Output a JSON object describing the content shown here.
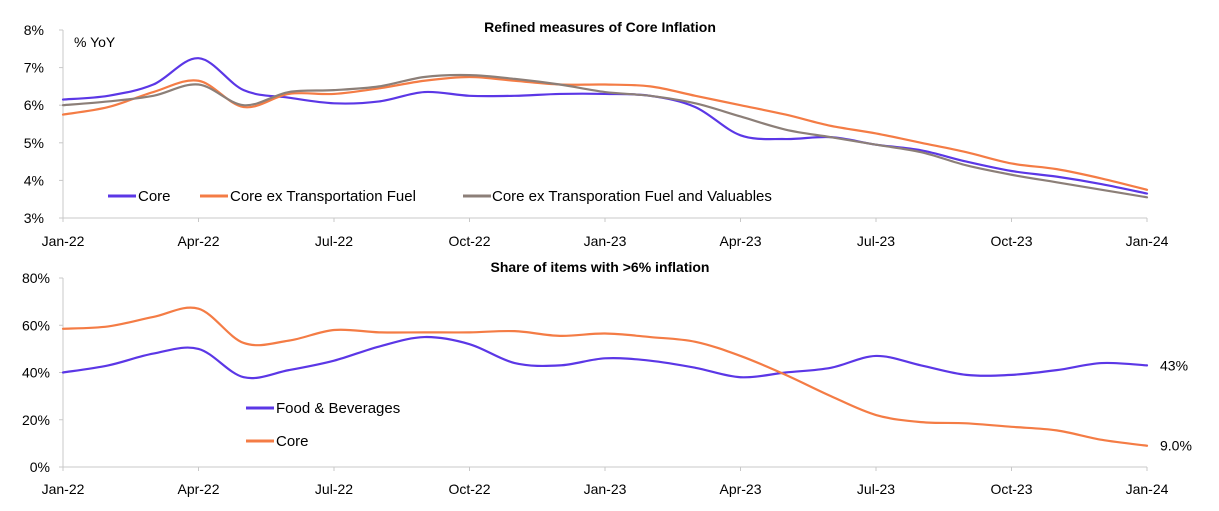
{
  "chart_data": [
    {
      "type": "line",
      "title": "Refined measures of Core Inflation",
      "unit_label": "% YoY",
      "ylim": [
        3,
        8
      ],
      "yticks": [
        "3%",
        "4%",
        "5%",
        "6%",
        "7%",
        "8%"
      ],
      "xticks": [
        "Jan-22",
        "Apr-22",
        "Jul-22",
        "Oct-22",
        "Jan-23",
        "Apr-23",
        "Jul-23",
        "Oct-23",
        "Jan-24"
      ],
      "x": [
        "Jan-22",
        "Feb-22",
        "Mar-22",
        "Apr-22",
        "May-22",
        "Jun-22",
        "Jul-22",
        "Aug-22",
        "Sep-22",
        "Oct-22",
        "Nov-22",
        "Dec-22",
        "Jan-23",
        "Feb-23",
        "Mar-23",
        "Apr-23",
        "May-23",
        "Jun-23",
        "Jul-23",
        "Aug-23",
        "Sep-23",
        "Oct-23",
        "Nov-23",
        "Dec-23",
        "Jan-24"
      ],
      "grid": false,
      "legend_position": "bottom-left",
      "series": [
        {
          "name": "Core",
          "color": "#5b37e6",
          "values": [
            6.15,
            6.25,
            6.55,
            7.25,
            6.4,
            6.2,
            6.05,
            6.1,
            6.35,
            6.25,
            6.25,
            6.3,
            6.3,
            6.25,
            5.95,
            5.2,
            5.1,
            5.15,
            4.95,
            4.8,
            4.5,
            4.25,
            4.1,
            3.9,
            3.65
          ]
        },
        {
          "name": "Core ex Transportation Fuel",
          "color": "#f47c45",
          "values": [
            5.75,
            5.95,
            6.35,
            6.65,
            5.95,
            6.3,
            6.3,
            6.45,
            6.65,
            6.75,
            6.65,
            6.55,
            6.55,
            6.5,
            6.25,
            6.0,
            5.75,
            5.45,
            5.25,
            5.0,
            4.75,
            4.45,
            4.3,
            4.05,
            3.75
          ]
        },
        {
          "name": "Core ex Transporation Fuel and Valuables",
          "color": "#8c7f78",
          "values": [
            6.0,
            6.1,
            6.25,
            6.55,
            6.0,
            6.35,
            6.4,
            6.5,
            6.75,
            6.8,
            6.7,
            6.55,
            6.35,
            6.25,
            6.05,
            5.7,
            5.35,
            5.15,
            4.95,
            4.75,
            4.4,
            4.15,
            3.95,
            3.75,
            3.55
          ]
        }
      ]
    },
    {
      "type": "line",
      "title": "Share of items with >6% inflation",
      "ylim": [
        0,
        80
      ],
      "yticks": [
        "0%",
        "20%",
        "40%",
        "60%",
        "80%"
      ],
      "xticks": [
        "Jan-22",
        "Apr-22",
        "Jul-22",
        "Oct-22",
        "Jan-23",
        "Apr-23",
        "Jul-23",
        "Oct-23",
        "Jan-24"
      ],
      "x": [
        "Jan-22",
        "Feb-22",
        "Mar-22",
        "Apr-22",
        "May-22",
        "Jun-22",
        "Jul-22",
        "Aug-22",
        "Sep-22",
        "Oct-22",
        "Nov-22",
        "Dec-22",
        "Jan-23",
        "Feb-23",
        "Mar-23",
        "Apr-23",
        "May-23",
        "Jun-23",
        "Jul-23",
        "Aug-23",
        "Sep-23",
        "Oct-23",
        "Nov-23",
        "Dec-23",
        "Jan-24"
      ],
      "grid": false,
      "legend_position": "middle-left",
      "series": [
        {
          "name": "Food & Beverages",
          "color": "#5b37e6",
          "end_label": "43%",
          "values": [
            40,
            43,
            48,
            50,
            38,
            41,
            45,
            51,
            55,
            52,
            44,
            43,
            46,
            45,
            42,
            38,
            40,
            42,
            47,
            43,
            39,
            39,
            41,
            44,
            43
          ]
        },
        {
          "name": "Core",
          "color": "#f47c45",
          "end_label": "9.0%",
          "values": [
            58.5,
            59.5,
            63.5,
            67,
            52.5,
            53.5,
            58,
            57,
            57,
            57,
            57.5,
            55.5,
            56.5,
            55,
            53,
            47,
            39,
            30,
            22,
            19,
            18.5,
            17,
            15.5,
            11.5,
            9
          ]
        }
      ]
    }
  ]
}
